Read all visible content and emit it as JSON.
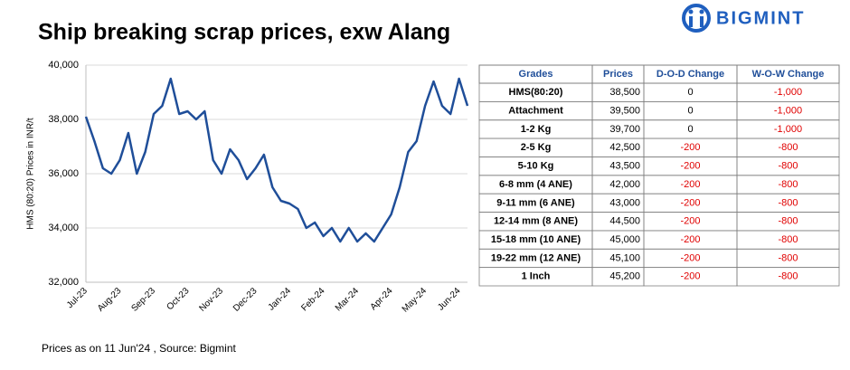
{
  "title": "Ship breaking scrap prices, exw Alang",
  "logo": "BIGMINT",
  "footnote": "Prices as on 11 Jun'24 , Source: Bigmint",
  "chart_data": {
    "type": "line",
    "ylabel": "HMS (80:20) Prices in INR/t",
    "categories": [
      "Jul-23",
      null,
      null,
      null,
      "Aug-23",
      null,
      null,
      null,
      "Sep-23",
      null,
      null,
      null,
      "Oct-23",
      null,
      null,
      null,
      "Nov-23",
      null,
      null,
      null,
      "Dec-23",
      null,
      null,
      null,
      "Jan-24",
      null,
      null,
      null,
      "Feb-24",
      null,
      null,
      null,
      "Mar-24",
      null,
      null,
      null,
      "Apr-24",
      null,
      null,
      null,
      "May-24",
      null,
      null,
      null,
      "Jun-24",
      null
    ],
    "series": [
      {
        "name": "HMS (80:20)",
        "color": "#1f4e99",
        "values": [
          38100,
          37200,
          36200,
          36000,
          36500,
          37500,
          36000,
          36800,
          38200,
          38500,
          39500,
          38200,
          38300,
          38000,
          38300,
          36500,
          36000,
          36900,
          36500,
          35800,
          36200,
          36700,
          35500,
          35000,
          34900,
          34700,
          34000,
          34200,
          33700,
          34000,
          33500,
          34000,
          33500,
          33800,
          33500,
          34000,
          34500,
          35500,
          36800,
          37200,
          38500,
          39400,
          38500,
          38200,
          39500,
          38500
        ]
      }
    ],
    "ylim": [
      32000,
      40000
    ],
    "yticks": [
      {
        "value": 32000,
        "label": "32,000"
      },
      {
        "value": 34000,
        "label": "34,000"
      },
      {
        "value": 36000,
        "label": "36,000"
      },
      {
        "value": 38000,
        "label": "38,000"
      },
      {
        "value": 40000,
        "label": "40,000"
      }
    ],
    "grid": true
  },
  "table": {
    "header": [
      "Grades",
      "Prices",
      "D-O-D Change",
      "W-O-W Change"
    ],
    "rows": [
      [
        "HMS(80:20)",
        "38,500",
        "0",
        "-1,000"
      ],
      [
        "Attachment",
        "39,500",
        "0",
        "-1,000"
      ],
      [
        "1-2 Kg",
        "39,700",
        "0",
        "-1,000"
      ],
      [
        "2-5 Kg",
        "42,500",
        "-200",
        "-800"
      ],
      [
        "5-10 Kg",
        "43,500",
        "-200",
        "-800"
      ],
      [
        "6-8 mm (4 ANE)",
        "42,000",
        "-200",
        "-800"
      ],
      [
        "9-11 mm (6 ANE)",
        "43,000",
        "-200",
        "-800"
      ],
      [
        "12-14 mm (8 ANE)",
        "44,500",
        "-200",
        "-800"
      ],
      [
        "15-18 mm (10 ANE)",
        "45,000",
        "-200",
        "-800"
      ],
      [
        "19-22 mm (12 ANE)",
        "45,100",
        "-200",
        "-800"
      ],
      [
        "1 Inch",
        "45,200",
        "-200",
        "-800"
      ]
    ]
  }
}
